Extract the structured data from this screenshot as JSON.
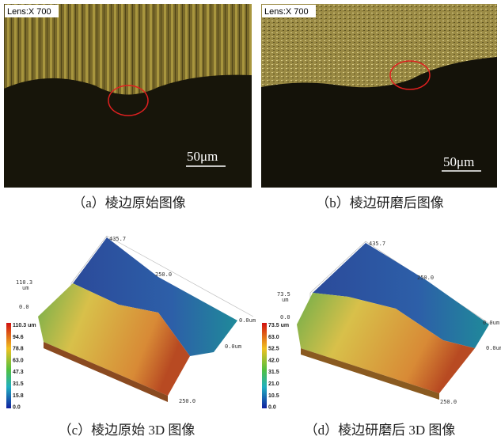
{
  "panels": [
    {
      "overlay": "Lens:X 700",
      "scale_bar": "50μm",
      "caption": "（a）棱边原始图像"
    },
    {
      "overlay": "Lens:X 700",
      "scale_bar": "50μm",
      "caption": "（b）棱边研磨后图像"
    },
    {
      "caption": "（c）棱边原始 3D 图像",
      "colorbar": [
        "110.3 um",
        "94.6",
        "78.8",
        "63.0",
        "47.3",
        "31.5",
        "15.8",
        "0.0"
      ],
      "axis_labels": [
        "435.7",
        "250.0",
        "0.0um",
        "0.0um",
        "250.0",
        "110.3",
        "um",
        "0.0"
      ]
    },
    {
      "caption": "（d）棱边研磨后 3D 图像",
      "colorbar": [
        "73.5 um",
        "63.0",
        "52.5",
        "42.0",
        "31.5",
        "21.0",
        "10.5",
        "0.0"
      ],
      "axis_labels": [
        "435.7",
        "250.0",
        "0.0um",
        "0.0um",
        "250.0",
        "73.5",
        "um",
        "0.0"
      ]
    }
  ]
}
